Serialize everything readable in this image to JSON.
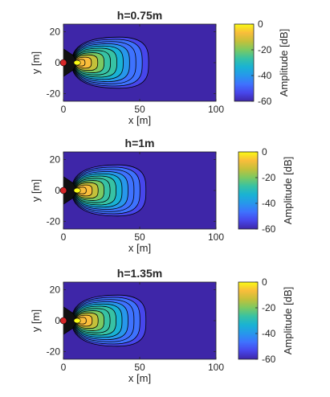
{
  "chart_data": [
    {
      "type": "heatmap",
      "title": "h=0.75m",
      "xlabel": "x [m]",
      "ylabel": "y [m]",
      "xlim": [
        0,
        100
      ],
      "ylim": [
        -25,
        25
      ],
      "xticks": [
        0,
        50,
        100
      ],
      "yticks": [
        -20,
        0,
        20
      ],
      "colorbar": {
        "label": "Amplitude [dB]",
        "limits": [
          -60,
          0
        ],
        "ticks": [
          0,
          -20,
          -40,
          -60
        ]
      },
      "colormap": [
        "#3e26a8",
        "#4746eb",
        "#3e72fe",
        "#2797eb",
        "#19b2d4",
        "#37c2a4",
        "#7bc962",
        "#c4c03a",
        "#f9bd3b",
        "#f9fa14"
      ],
      "contour_levels_db": [
        -55,
        -50,
        -45,
        -40,
        -35,
        -30,
        -25,
        -20,
        -15,
        -10,
        -5
      ],
      "source_marker": {
        "x": 0,
        "y": 0,
        "color": "#d62728"
      },
      "peak_x": 8,
      "outer_extent_x": 60,
      "outer_half_width_y": 18
    },
    {
      "type": "heatmap",
      "title": "h=1m",
      "xlabel": "x [m]",
      "ylabel": "y [m]",
      "xlim": [
        0,
        100
      ],
      "ylim": [
        -25,
        25
      ],
      "xticks": [
        0,
        50,
        100
      ],
      "yticks": [
        -20,
        0,
        20
      ],
      "colorbar": {
        "label": "Amplitude [dB]",
        "limits": [
          -60,
          0
        ],
        "ticks": [
          0,
          -20,
          -40,
          -60
        ]
      },
      "colormap": [
        "#3e26a8",
        "#4746eb",
        "#3e72fe",
        "#2797eb",
        "#19b2d4",
        "#37c2a4",
        "#7bc962",
        "#c4c03a",
        "#f9bd3b",
        "#f9fa14"
      ],
      "contour_levels_db": [
        -55,
        -50,
        -45,
        -40,
        -35,
        -30,
        -25,
        -20,
        -15,
        -10,
        -5
      ],
      "source_marker": {
        "x": 0,
        "y": 0,
        "color": "#d62728"
      },
      "peak_x": 9,
      "outer_extent_x": 58,
      "outer_half_width_y": 18
    },
    {
      "type": "heatmap",
      "title": "h=1.35m",
      "xlabel": "x [m]",
      "ylabel": "y [m]",
      "xlim": [
        0,
        100
      ],
      "ylim": [
        -25,
        25
      ],
      "xticks": [
        0,
        50,
        100
      ],
      "yticks": [
        -20,
        0,
        20
      ],
      "colorbar": {
        "label": "Amplitude [dB]",
        "limits": [
          -60,
          0
        ],
        "ticks": [
          0,
          -20,
          -40,
          -60
        ]
      },
      "colormap": [
        "#3e26a8",
        "#4746eb",
        "#3e72fe",
        "#2797eb",
        "#19b2d4",
        "#37c2a4",
        "#7bc962",
        "#c4c03a",
        "#f9bd3b",
        "#f9fa14"
      ],
      "contour_levels_db": [
        -55,
        -50,
        -45,
        -40,
        -35,
        -30,
        -25,
        -20,
        -15,
        -10,
        -5
      ],
      "source_marker": {
        "x": 0,
        "y": 0,
        "color": "#d62728"
      },
      "peak_x": 9,
      "outer_extent_x": 58,
      "outer_half_width_y": 18
    }
  ]
}
